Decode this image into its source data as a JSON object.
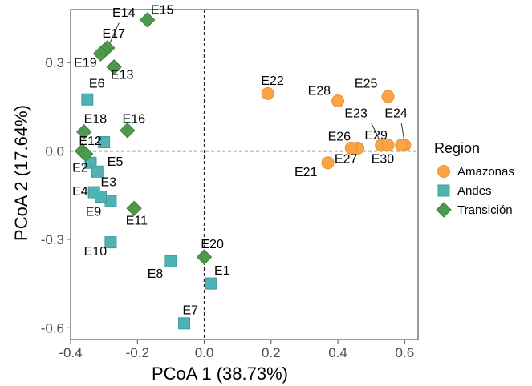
{
  "chart_data": {
    "type": "scatter",
    "xlabel": "PCoA 1 (38.73%)",
    "ylabel": "PCoA 2 (17.64%)",
    "xlim": [
      -0.4,
      0.64
    ],
    "ylim": [
      -0.64,
      0.48
    ],
    "x_ticks": [
      {
        "value": -0.4,
        "label": "-0.4"
      },
      {
        "value": -0.2,
        "label": "-0.2"
      },
      {
        "value": 0.0,
        "label": "0.0"
      },
      {
        "value": 0.2,
        "label": "0.2"
      },
      {
        "value": 0.4,
        "label": "0.4"
      },
      {
        "value": 0.6,
        "label": "0.6"
      }
    ],
    "y_ticks": [
      {
        "value": 0.3,
        "label": "0.3"
      },
      {
        "value": 0.0,
        "label": "0.0"
      },
      {
        "value": -0.3,
        "label": "-0.3"
      },
      {
        "value": -0.6,
        "label": "-0.6"
      }
    ],
    "grid": false,
    "reference_lines": {
      "x": 0,
      "y": 0,
      "style": "dashed"
    },
    "legend": {
      "title": "Region",
      "position": "right"
    },
    "series": [
      {
        "name": "Amazonas",
        "marker": "circle",
        "color": "#F9A545",
        "stroke": "#E8913A",
        "points": [
          {
            "id": "E21",
            "x": 0.37,
            "y": -0.04
          },
          {
            "id": "E22",
            "x": 0.19,
            "y": 0.195
          },
          {
            "id": "E23",
            "x": 0.53,
            "y": 0.02
          },
          {
            "id": "E24",
            "x": 0.6,
            "y": 0.02
          },
          {
            "id": "E25",
            "x": 0.55,
            "y": 0.185
          },
          {
            "id": "E26",
            "x": 0.46,
            "y": 0.01
          },
          {
            "id": "E27",
            "x": 0.44,
            "y": 0.01
          },
          {
            "id": "E28",
            "x": 0.4,
            "y": 0.17
          },
          {
            "id": "E29",
            "x": 0.55,
            "y": 0.02
          },
          {
            "id": "E30",
            "x": 0.59,
            "y": 0.02
          }
        ]
      },
      {
        "name": "Andes",
        "marker": "square",
        "color": "#4FB3B3",
        "stroke": "#3C9C9C",
        "points": [
          {
            "id": "E1",
            "x": 0.02,
            "y": -0.45
          },
          {
            "id": "E2",
            "x": -0.34,
            "y": -0.04
          },
          {
            "id": "E3",
            "x": -0.28,
            "y": -0.17
          },
          {
            "id": "E4",
            "x": -0.33,
            "y": -0.14
          },
          {
            "id": "E5",
            "x": -0.32,
            "y": -0.07
          },
          {
            "id": "E6",
            "x": -0.35,
            "y": 0.175
          },
          {
            "id": "E7",
            "x": -0.06,
            "y": -0.585
          },
          {
            "id": "E8",
            "x": -0.1,
            "y": -0.375
          },
          {
            "id": "E9",
            "x": -0.31,
            "y": -0.155
          },
          {
            "id": "E10",
            "x": -0.28,
            "y": -0.31
          },
          {
            "id": "E12",
            "x": -0.3,
            "y": 0.03
          }
        ]
      },
      {
        "name": "Transición",
        "marker": "diamond",
        "color": "#4D9A4D",
        "stroke": "#3E833E",
        "points": [
          {
            "id": "E11",
            "x": -0.21,
            "y": -0.195
          },
          {
            "id": "E13",
            "x": -0.27,
            "y": 0.285
          },
          {
            "id": "E14",
            "x": -0.29,
            "y": 0.35
          },
          {
            "id": "E15",
            "x": -0.17,
            "y": 0.445
          },
          {
            "id": "E16",
            "x": -0.23,
            "y": 0.07
          },
          {
            "id": "E17",
            "x": -0.3,
            "y": 0.34
          },
          {
            "id": "E18",
            "x": -0.36,
            "y": 0.065
          },
          {
            "id": "E19",
            "x": -0.31,
            "y": 0.33
          },
          {
            "id": "E20",
            "x": 0.0,
            "y": -0.36
          },
          {
            "id": "E_a",
            "x": -0.365,
            "y": 0.0
          },
          {
            "id": "E_b",
            "x": -0.355,
            "y": -0.01
          }
        ]
      }
    ],
    "label_positions": {
      "E1": [
        0.03,
        -0.42
      ],
      "E2": [
        -0.395,
        -0.07
      ],
      "E3": [
        -0.31,
        -0.12
      ],
      "E4": [
        -0.395,
        -0.15
      ],
      "E5": [
        -0.29,
        -0.05
      ],
      "E6": [
        -0.345,
        0.215
      ],
      "E7": [
        -0.065,
        -0.555
      ],
      "E8": [
        -0.17,
        -0.43
      ],
      "E9": [
        -0.355,
        -0.22
      ],
      "E10": [
        -0.36,
        -0.355
      ],
      "E11": [
        -0.235,
        -0.25
      ],
      "E12": [
        -0.375,
        0.02
      ],
      "E13": [
        -0.28,
        0.245
      ],
      "E14": [
        -0.275,
        0.455
      ],
      "E15": [
        -0.16,
        0.465
      ],
      "E16": [
        -0.245,
        0.095
      ],
      "E17": [
        -0.305,
        0.385
      ],
      "E18": [
        -0.36,
        0.095
      ],
      "E19": [
        -0.39,
        0.285
      ],
      "E20": [
        -0.01,
        -0.33
      ],
      "E21": [
        0.27,
        -0.085
      ],
      "E22": [
        0.17,
        0.225
      ],
      "E23": [
        0.42,
        0.115
      ],
      "E24": [
        0.54,
        0.115
      ],
      "E25": [
        0.45,
        0.215
      ],
      "E26": [
        0.37,
        0.035
      ],
      "E27": [
        0.39,
        -0.04
      ],
      "E28": [
        0.31,
        0.19
      ],
      "E29": [
        0.48,
        0.04
      ],
      "E30": [
        0.5,
        -0.04
      ]
    },
    "label_leaders": {
      "E14": [
        [
          -0.255,
          0.435
        ],
        [
          -0.285,
          0.36
        ]
      ],
      "E17": [
        [
          -0.29,
          0.36
        ],
        [
          -0.3,
          0.345
        ]
      ],
      "E23": [
        [
          0.5,
          0.095
        ],
        [
          0.53,
          0.025
        ]
      ],
      "E29": [
        [
          0.53,
          0.035
        ],
        [
          0.54,
          0.025
        ]
      ],
      "E24": [
        [
          0.59,
          0.095
        ],
        [
          0.6,
          0.025
        ]
      ]
    }
  }
}
